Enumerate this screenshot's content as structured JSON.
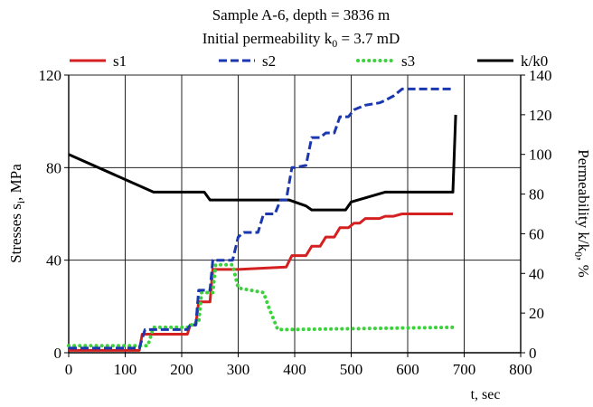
{
  "chart_data": {
    "type": "line",
    "title": "Sample A-6, depth = 3836 m",
    "subtitle": "Initial permeability k",
    "subtitle_sub": "0",
    "subtitle_rest": " = 3.7 mD",
    "xlabel": "t, sec",
    "xlim": [
      0,
      800
    ],
    "xticks": [
      0,
      100,
      200,
      300,
      400,
      500,
      600,
      700,
      800
    ],
    "ylabel_left": {
      "pre": "Stresses s",
      "sub": "i",
      "post": ", MPa"
    },
    "ylim_left": [
      0,
      120
    ],
    "yticks_left": [
      0,
      40,
      80,
      120
    ],
    "ylabel_right": {
      "pre": "Permeability k/k",
      "sub": "0",
      "post": ", %"
    },
    "ylim_right": [
      0,
      140
    ],
    "yticks_right": [
      0,
      20,
      40,
      60,
      80,
      100,
      120,
      140
    ],
    "grid": true,
    "legend_position": "top",
    "series": [
      {
        "name": "s1",
        "axis": "left",
        "color": "#d42020",
        "style": "solid",
        "x": [
          0,
          125,
          130,
          210,
          215,
          225,
          230,
          250,
          255,
          270,
          280,
          290,
          300,
          385,
          395,
          420,
          430,
          445,
          455,
          470,
          480,
          495,
          505,
          515,
          525,
          550,
          560,
          575,
          590,
          600,
          680
        ],
        "y": [
          1,
          1,
          8,
          8,
          12,
          12,
          22,
          22,
          36,
          36,
          36,
          36,
          36,
          37,
          42,
          42,
          46,
          46,
          50,
          50,
          54,
          54,
          56,
          56,
          58,
          58,
          59,
          59,
          60,
          60,
          60
        ]
      },
      {
        "name": "s2",
        "axis": "left",
        "color": "#1a37b0",
        "style": "dashed",
        "x": [
          0,
          125,
          135,
          210,
          215,
          225,
          230,
          250,
          255,
          270,
          285,
          290,
          300,
          310,
          335,
          345,
          365,
          375,
          385,
          395,
          400,
          420,
          430,
          445,
          455,
          470,
          480,
          495,
          505,
          515,
          525,
          550,
          560,
          575,
          590,
          600,
          680
        ],
        "y": [
          2,
          2,
          10,
          10,
          12,
          12,
          27,
          27,
          40,
          40,
          40,
          40,
          50,
          52,
          52,
          60,
          60,
          66,
          66,
          80,
          80,
          81,
          93,
          93,
          95,
          95,
          102,
          102,
          105,
          106,
          107,
          108,
          109,
          111,
          114,
          114,
          114
        ]
      },
      {
        "name": "s3",
        "axis": "left",
        "color": "#3cd23c",
        "style": "dotted",
        "x": [
          0,
          140,
          150,
          215,
          220,
          230,
          235,
          255,
          260,
          275,
          285,
          290,
          300,
          345,
          355,
          370,
          385,
          680
        ],
        "y": [
          3,
          3,
          11,
          11,
          13,
          13,
          26,
          26,
          38,
          38,
          38,
          38,
          28,
          26,
          19,
          10,
          10,
          11
        ]
      },
      {
        "name": "k/k0",
        "axis": "right",
        "color": "#000000",
        "style": "solid",
        "x": [
          0,
          150,
          170,
          240,
          250,
          345,
          350,
          390,
          400,
          420,
          430,
          460,
          470,
          490,
          500,
          560,
          575,
          680,
          685
        ],
        "y": [
          100,
          81,
          81,
          81,
          77,
          77,
          77,
          77,
          76,
          74,
          72,
          72,
          72,
          72,
          76,
          81,
          81,
          81,
          120
        ]
      }
    ]
  }
}
